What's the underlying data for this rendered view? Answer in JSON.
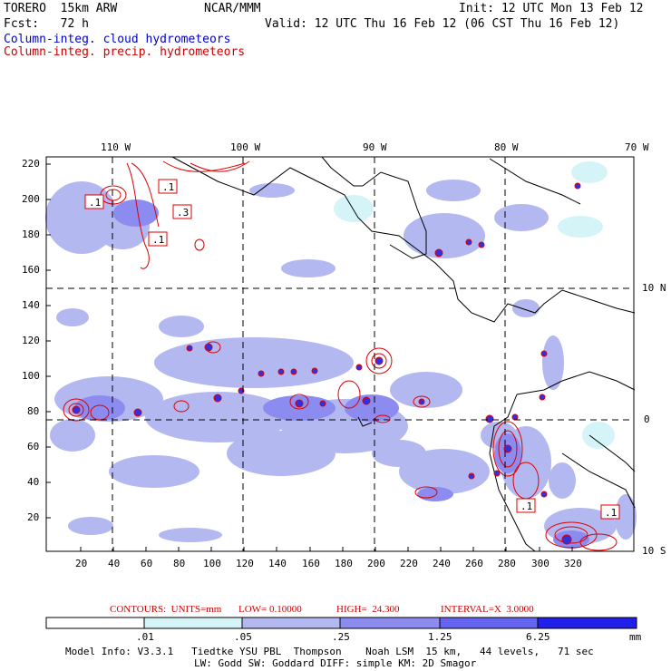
{
  "header": {
    "model": "TORERO  15km ARW",
    "org": "NCAR/MMM",
    "init": "Init: 12 UTC Mon 13 Feb 12",
    "fcst": "Fcst:   72 h",
    "valid": "Valid: 12 UTC Thu 16 Feb 12 (06 CST Thu 16 Feb 12)",
    "legend_cloud": "Column-integ. cloud hydrometeors",
    "legend_precip": "Column-integ. precip. hydrometeors"
  },
  "axes": {
    "top_lon_labels": [
      "110 W",
      "100 W",
      "90 W",
      "80 W",
      "70 W"
    ],
    "right_lat_labels": [
      "10 N",
      "0",
      "10 S"
    ],
    "x_ticks": [
      "20",
      "40",
      "60",
      "80",
      "100",
      "120",
      "140",
      "160",
      "180",
      "200",
      "220",
      "240",
      "260",
      "280",
      "300",
      "320"
    ],
    "y_ticks": [
      "220",
      "200",
      "180",
      "160",
      "140",
      "120",
      "100",
      "80",
      "60",
      "40",
      "20"
    ]
  },
  "contour_labels": [
    ".1",
    ".1",
    ".3",
    ".1",
    ".1",
    ".1"
  ],
  "contours_line": {
    "prefix": "CONTOURS:  UNITS=mm",
    "low": "LOW= 0.10000",
    "high": "HIGH=  24.300",
    "interval": "INTERVAL=X  3.0000"
  },
  "colorbar": {
    "labels": [
      ".01",
      ".05",
      ".25",
      "1.25",
      "6.25"
    ],
    "unit": "mm",
    "colors": [
      "#ffffff",
      "#d4f4f8",
      "#b3b8f0",
      "#8c8cf0",
      "#6464f0",
      "#2020e8"
    ]
  },
  "footer": {
    "line1": "Model Info: V3.3.1   Tiedtke YSU PBL  Thompson    Noah LSM  15 km,   44 levels,   71 sec",
    "line2": "LW: Godd SW: Goddard DIFF: simple KM: 2D Smagor"
  }
}
